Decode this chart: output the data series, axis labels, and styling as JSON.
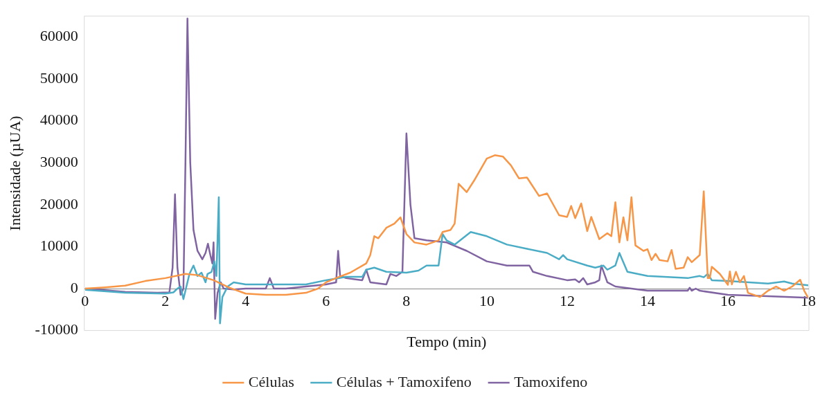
{
  "chart_data": {
    "type": "line",
    "xlabel": "Tempo (min)",
    "ylabel": "Intensidade (µUA)",
    "xlim": [
      0,
      18
    ],
    "xticks": [
      0,
      2,
      4,
      6,
      8,
      10,
      12,
      14,
      16,
      18
    ],
    "ylim": [
      -10000,
      65000
    ],
    "yticks": [
      -10000,
      0,
      10000,
      20000,
      30000,
      40000,
      50000,
      60000
    ],
    "grid": false,
    "legend": "bottom",
    "marker": "none",
    "line_style": "solid",
    "series": [
      {
        "name": "Células",
        "color": "#f79646",
        "x": [
          0,
          0.5,
          1,
          1.5,
          2,
          2.5,
          2.8,
          3.2,
          3.6,
          4,
          4.5,
          5,
          5.5,
          5.8,
          6,
          6.3,
          6.6,
          7,
          7.1,
          7.2,
          7.3,
          7.5,
          7.7,
          7.85,
          8,
          8.2,
          8.5,
          8.8,
          8.9,
          9.1,
          9.2,
          9.3,
          9.5,
          9.7,
          10,
          10.2,
          10.4,
          10.6,
          10.8,
          11,
          11.3,
          11.5,
          11.8,
          12,
          12.1,
          12.2,
          12.35,
          12.5,
          12.6,
          12.8,
          13,
          13.1,
          13.2,
          13.3,
          13.4,
          13.5,
          13.6,
          13.7,
          13.9,
          14,
          14.1,
          14.2,
          14.3,
          14.5,
          14.6,
          14.7,
          14.9,
          15,
          15.1,
          15.3,
          15.4,
          15.5,
          15.55,
          15.6,
          15.8,
          16,
          16.05,
          16.1,
          16.2,
          16.3,
          16.4,
          16.5,
          16.8,
          17,
          17.2,
          17.4,
          17.6,
          17.8,
          17.9,
          18
        ],
        "values": [
          0,
          300,
          700,
          1800,
          2500,
          3500,
          3200,
          2000,
          200,
          -1200,
          -1500,
          -1500,
          -1000,
          0,
          1500,
          2700,
          3800,
          6000,
          8000,
          12500,
          12000,
          14500,
          15500,
          17000,
          13000,
          11000,
          10500,
          11500,
          13500,
          14000,
          15500,
          25000,
          23000,
          26000,
          31000,
          31800,
          31500,
          29400,
          26300,
          26500,
          22100,
          22700,
          17500,
          17100,
          19700,
          16800,
          20300,
          13700,
          17100,
          11800,
          13200,
          12500,
          20600,
          11000,
          17000,
          11500,
          21800,
          10300,
          9000,
          9400,
          6800,
          8300,
          6800,
          6500,
          9200,
          4700,
          5000,
          7500,
          6300,
          8000,
          23200,
          2500,
          2500,
          5200,
          3500,
          900,
          4100,
          1000,
          4000,
          1500,
          3000,
          -1000,
          -2000,
          -500,
          500,
          -500,
          500,
          2100,
          -500,
          -2200
        ]
      },
      {
        "name": "Células + Tamoxifeno",
        "color": "#4bacc6",
        "x": [
          0,
          1,
          2,
          2.2,
          2.3,
          2.38,
          2.45,
          2.5,
          2.6,
          2.7,
          2.8,
          2.9,
          3,
          3.05,
          3.15,
          3.22,
          3.27,
          3.3,
          3.33,
          3.36,
          3.42,
          3.55,
          3.7,
          4,
          5,
          5.5,
          6,
          6.5,
          6.9,
          7,
          7.2,
          7.5,
          8,
          8.3,
          8.5,
          8.8,
          8.9,
          9,
          9.2,
          9.6,
          10,
          10.5,
          11,
          11.5,
          11.8,
          11.9,
          12,
          12.5,
          12.7,
          12.9,
          13,
          13.2,
          13.3,
          13.5,
          14,
          15,
          15.3,
          15.4,
          15.5,
          15.6,
          16,
          17,
          17.4,
          17.6,
          18
        ],
        "values": [
          -300,
          -1000,
          -1200,
          -900,
          0,
          500,
          -2500,
          -500,
          3500,
          5500,
          3000,
          3800,
          1500,
          3500,
          4000,
          6500,
          3000,
          12000,
          21800,
          -8300,
          -2000,
          500,
          1500,
          1000,
          1000,
          1000,
          2000,
          2800,
          2800,
          4500,
          5000,
          4000,
          3800,
          4300,
          5500,
          5500,
          13000,
          11500,
          10500,
          13500,
          12500,
          10500,
          9500,
          8500,
          7000,
          8000,
          7000,
          5500,
          5000,
          5500,
          4500,
          5500,
          8500,
          4000,
          3000,
          2500,
          3000,
          2700,
          3500,
          2000,
          1800,
          1200,
          1700,
          1200,
          800
        ]
      },
      {
        "name": "Tamoxifeno",
        "color": "#8064a2",
        "x": [
          0,
          1,
          1.8,
          2.1,
          2.18,
          2.24,
          2.3,
          2.38,
          2.45,
          2.5,
          2.55,
          2.62,
          2.7,
          2.8,
          2.92,
          3,
          3.06,
          3.12,
          3.17,
          3.2,
          3.24,
          3.3,
          3.38,
          3.45,
          3.7,
          4,
          4.5,
          4.6,
          4.7,
          5,
          5.5,
          6,
          6.25,
          6.3,
          6.35,
          6.5,
          6.9,
          7,
          7.1,
          7.5,
          7.6,
          7.75,
          7.9,
          8,
          8.1,
          8.2,
          8.5,
          9,
          9.5,
          10,
          10.5,
          11,
          11.06,
          11.15,
          11.5,
          12,
          12.2,
          12.3,
          12.4,
          12.5,
          12.7,
          12.8,
          12.85,
          13,
          13.2,
          14,
          15,
          15.05,
          15.1,
          15.2,
          15.3,
          16,
          17,
          18
        ],
        "values": [
          0,
          -800,
          -1000,
          -900,
          5000,
          22500,
          5000,
          -1500,
          0,
          30000,
          64400,
          30000,
          14000,
          9000,
          7000,
          8500,
          10700,
          8000,
          6000,
          11000,
          -7200,
          -1000,
          1500,
          0,
          -200,
          0,
          0,
          2500,
          0,
          0,
          500,
          1000,
          1500,
          9000,
          3000,
          2500,
          2000,
          4500,
          1500,
          1000,
          3500,
          3000,
          4000,
          37000,
          20000,
          12000,
          11500,
          11000,
          9000,
          6500,
          5500,
          5500,
          5500,
          4000,
          3000,
          2000,
          2200,
          1500,
          2500,
          1000,
          1500,
          2000,
          5500,
          1500,
          500,
          -500,
          -500,
          200,
          -500,
          0,
          -500,
          -1500,
          -1800,
          -2200
        ]
      }
    ]
  }
}
